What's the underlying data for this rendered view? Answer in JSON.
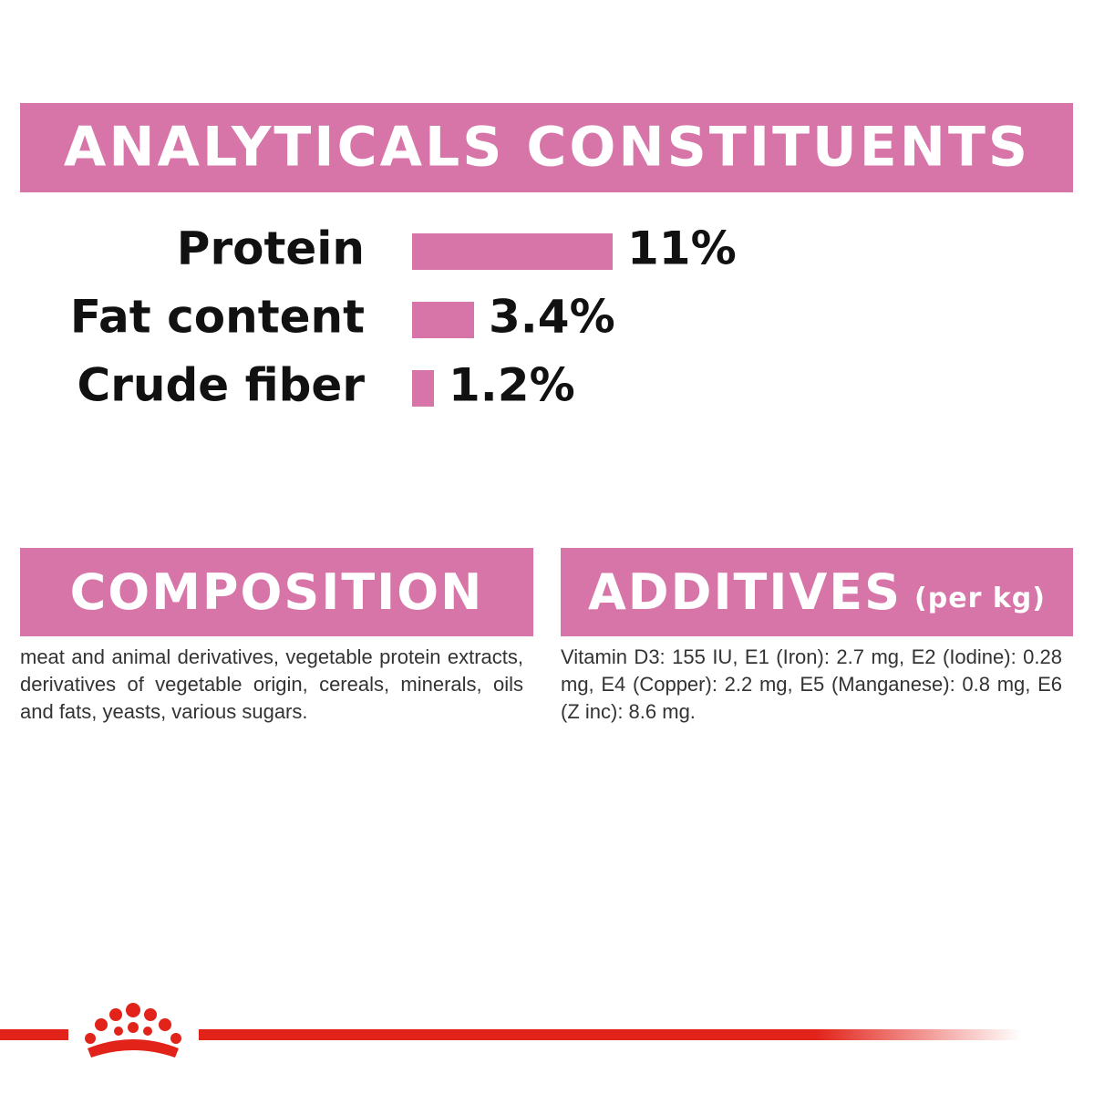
{
  "chart_data": {
    "type": "bar",
    "orientation": "horizontal",
    "title": "ANALYTICALS CONSTITUENTS",
    "categories": [
      "Protein",
      "Fat content",
      "Crude fiber"
    ],
    "values": [
      11,
      3.4,
      1.2
    ],
    "value_labels": [
      "11%",
      "3.4%",
      "1.2%"
    ],
    "color": "#d775a8"
  },
  "composition": {
    "title": "COMPOSITION",
    "text": "meat and animal derivatives, vegetable protein extracts, derivatives of vegetable origin, cereals, minerals, oils and fats, yeasts, various sugars."
  },
  "additives": {
    "title": "ADDITIVES",
    "subtitle": "(per kg)",
    "text": "Vitamin D3: 155 IU, E1 (Iron): 2.7 mg, E2 (Iodine): 0.28 mg, E4 (Copper): 2.2 mg, E5 (Manganese): 0.8 mg, E6 (Z inc): 8.6 mg."
  }
}
